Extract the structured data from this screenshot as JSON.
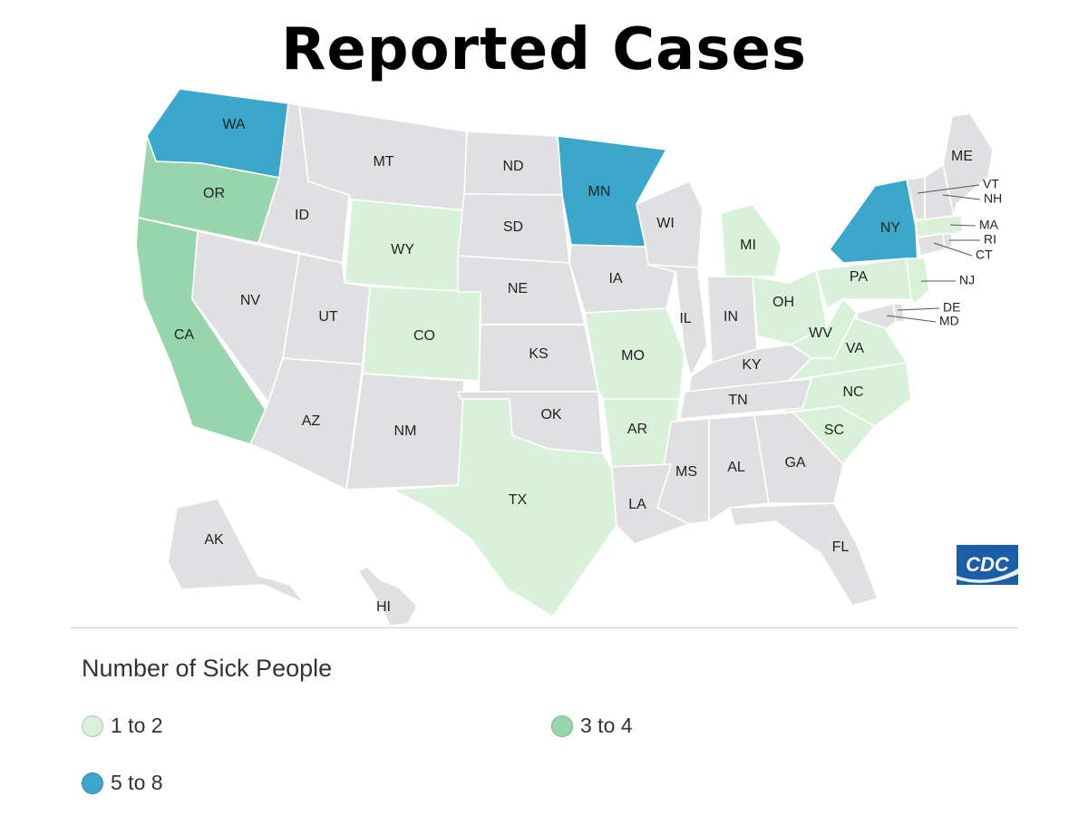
{
  "title": "Reported Cases",
  "legend": {
    "title": "Number of Sick People",
    "items": [
      {
        "label": "1 to 2",
        "color": "#d9f0d9"
      },
      {
        "label": "3 to 4",
        "color": "#97d6ad"
      },
      {
        "label": "5 to 8",
        "color": "#3aa7cb"
      }
    ]
  },
  "colors": {
    "none": "#e0e0e2",
    "border": "#ffffff"
  },
  "logo_text": "CDC",
  "states": [
    {
      "abbr": "WA",
      "bin": 3
    },
    {
      "abbr": "OR",
      "bin": 2
    },
    {
      "abbr": "CA",
      "bin": 2
    },
    {
      "abbr": "MN",
      "bin": 3
    },
    {
      "abbr": "NY",
      "bin": 3
    },
    {
      "abbr": "WY",
      "bin": 1
    },
    {
      "abbr": "CO",
      "bin": 1
    },
    {
      "abbr": "TX",
      "bin": 1
    },
    {
      "abbr": "MO",
      "bin": 1
    },
    {
      "abbr": "AR",
      "bin": 1
    },
    {
      "abbr": "MI",
      "bin": 1
    },
    {
      "abbr": "OH",
      "bin": 1
    },
    {
      "abbr": "PA",
      "bin": 1
    },
    {
      "abbr": "VA",
      "bin": 1
    },
    {
      "abbr": "NC",
      "bin": 1
    },
    {
      "abbr": "SC",
      "bin": 1
    },
    {
      "abbr": "NJ",
      "bin": 1
    },
    {
      "abbr": "MA",
      "bin": 1
    },
    {
      "abbr": "WV",
      "bin": 1
    },
    {
      "abbr": "MT",
      "bin": 0
    },
    {
      "abbr": "ID",
      "bin": 0
    },
    {
      "abbr": "NV",
      "bin": 0
    },
    {
      "abbr": "UT",
      "bin": 0
    },
    {
      "abbr": "AZ",
      "bin": 0
    },
    {
      "abbr": "NM",
      "bin": 0
    },
    {
      "abbr": "ND",
      "bin": 0
    },
    {
      "abbr": "SD",
      "bin": 0
    },
    {
      "abbr": "NE",
      "bin": 0
    },
    {
      "abbr": "KS",
      "bin": 0
    },
    {
      "abbr": "OK",
      "bin": 0
    },
    {
      "abbr": "IA",
      "bin": 0
    },
    {
      "abbr": "WI",
      "bin": 0
    },
    {
      "abbr": "IL",
      "bin": 0
    },
    {
      "abbr": "IN",
      "bin": 0
    },
    {
      "abbr": "KY",
      "bin": 0
    },
    {
      "abbr": "TN",
      "bin": 0
    },
    {
      "abbr": "MS",
      "bin": 0
    },
    {
      "abbr": "AL",
      "bin": 0
    },
    {
      "abbr": "GA",
      "bin": 0
    },
    {
      "abbr": "FL",
      "bin": 0
    },
    {
      "abbr": "LA",
      "bin": 0
    },
    {
      "abbr": "ME",
      "bin": 0
    },
    {
      "abbr": "VT",
      "bin": 0
    },
    {
      "abbr": "NH",
      "bin": 0
    },
    {
      "abbr": "RI",
      "bin": 0
    },
    {
      "abbr": "CT",
      "bin": 0
    },
    {
      "abbr": "DE",
      "bin": 0
    },
    {
      "abbr": "MD",
      "bin": 0
    },
    {
      "abbr": "AK",
      "bin": 0
    },
    {
      "abbr": "HI",
      "bin": 0
    }
  ]
}
